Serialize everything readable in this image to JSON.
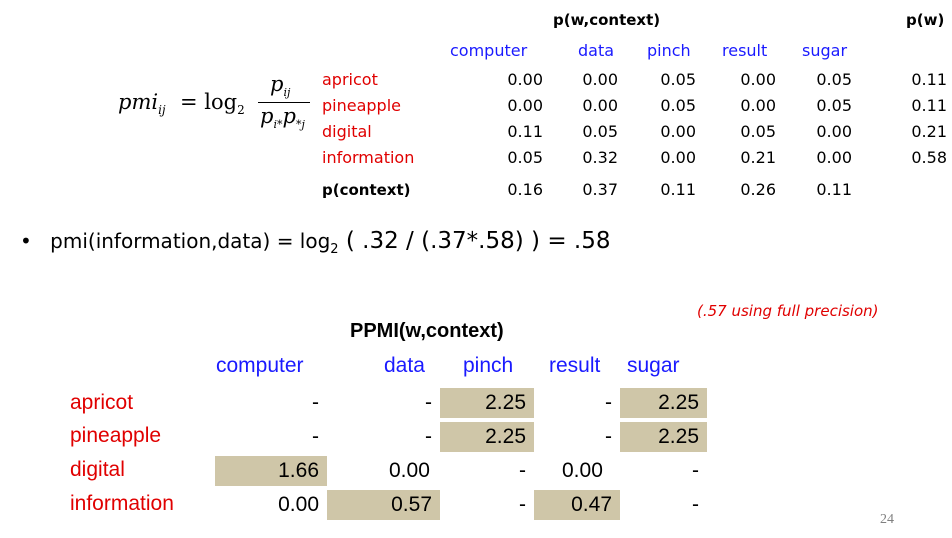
{
  "top_table": {
    "title": "p(w,context)",
    "pw_title": "p(w)",
    "columns": [
      "computer",
      "data",
      "pinch",
      "result",
      "sugar"
    ],
    "rows": [
      {
        "word": "apricot",
        "values": [
          "0.00",
          "0.00",
          "0.05",
          "0.00",
          "0.05"
        ],
        "pw": "0.11"
      },
      {
        "word": "pineapple",
        "values": [
          "0.00",
          "0.00",
          "0.05",
          "0.00",
          "0.05"
        ],
        "pw": "0.11"
      },
      {
        "word": "digital",
        "values": [
          "0.11",
          "0.05",
          "0.00",
          "0.05",
          "0.00"
        ],
        "pw": "0.21"
      },
      {
        "word": "information",
        "values": [
          "0.05",
          "0.32",
          "0.00",
          "0.21",
          "0.00"
        ],
        "pw": "0.58"
      }
    ],
    "pcontext_label": "p(context)",
    "pcontext": [
      "0.16",
      "0.37",
      "0.11",
      "0.26",
      "0.11"
    ]
  },
  "formula": {
    "lhs": "pmi",
    "lhs_sub": "ij",
    "eq": "= log",
    "base": "2",
    "num": "p",
    "num_sub": "ij",
    "den_a": "p",
    "den_a_sub": "i*",
    "den_b": "p",
    "den_b_sub": "*j"
  },
  "bullet": {
    "marker": "•",
    "text_a": "pmi(information,data) = log",
    "sub": "2",
    "text_b": " (   .32 /  (.37*.58) ) = .58"
  },
  "note": "(.57 using full precision)",
  "ppmi": {
    "title": "PPMI(w,context)",
    "columns": [
      "computer",
      "data",
      "pinch",
      "result",
      "sugar"
    ],
    "rows": [
      {
        "word": "apricot",
        "values": [
          "-",
          "-",
          "2.25",
          "-",
          "2.25"
        ]
      },
      {
        "word": "pineapple",
        "values": [
          "-",
          "-",
          "2.25",
          "-",
          "2.25"
        ]
      },
      {
        "word": "digital",
        "values": [
          "1.66",
          "0.00",
          "-",
          "0.00",
          "-"
        ]
      },
      {
        "word": "information",
        "values": [
          "0.00",
          "0.57",
          "-",
          "0.47",
          "-"
        ]
      }
    ]
  },
  "page_number": "24"
}
